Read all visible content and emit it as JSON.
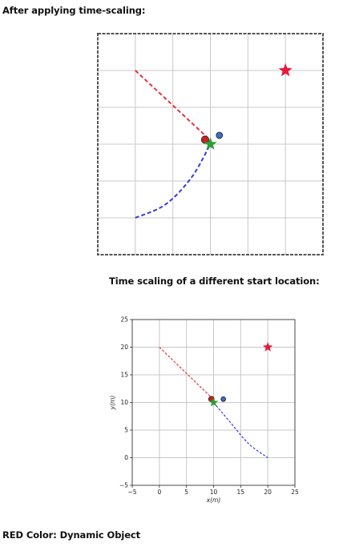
{
  "headings": {
    "after_scaling": "After applying time-scaling:",
    "different_start": "Time scaling of a different start location:",
    "legend_note": "RED Color: Dynamic Object"
  },
  "colors": {
    "red_path": "#e8333a",
    "blue_path": "#3a3ae0",
    "goal_star": "#e8173c",
    "agent_star": "#2e9e3a",
    "dynamic_dot": "#d01f1f",
    "agent_dot": "#3a6fd0",
    "grid": "#c8c8c8"
  },
  "chart_data": [
    {
      "type": "scatter",
      "title": "",
      "xlabel": "",
      "ylabel": "",
      "xlim": [
        -5,
        25
      ],
      "ylim": [
        -5,
        25
      ],
      "grid": true,
      "ticks_visible": false,
      "red_path": [
        [
          0,
          20
        ],
        [
          9.5,
          11
        ]
      ],
      "blue_path": [
        [
          0,
          0
        ],
        [
          4,
          1.8
        ],
        [
          7.5,
          5.5
        ],
        [
          10,
          10
        ]
      ],
      "goal_star": [
        20,
        20
      ],
      "agent_star": [
        10,
        10
      ],
      "dynamic_dot": [
        9.3,
        10.6
      ],
      "agent_dot": [
        11.2,
        11.2
      ]
    },
    {
      "type": "scatter",
      "title": "",
      "xlabel": "x(m)",
      "ylabel": "y(m)",
      "xlim": [
        -5,
        25
      ],
      "ylim": [
        -5,
        25
      ],
      "grid": true,
      "ticks_visible": true,
      "xticks": [
        "−5",
        "0",
        "5",
        "10",
        "15",
        "20",
        "25"
      ],
      "yticks": [
        "−5",
        "0",
        "5",
        "10",
        "15",
        "20",
        "25"
      ],
      "red_path": [
        [
          0,
          20
        ],
        [
          9.5,
          11
        ]
      ],
      "blue_path": [
        [
          10,
          10
        ],
        [
          13,
          6.5
        ],
        [
          16.5,
          2.5
        ],
        [
          20,
          0
        ]
      ],
      "goal_star": [
        20,
        20
      ],
      "agent_star": [
        10,
        10
      ],
      "dynamic_dot": [
        9.6,
        10.6
      ],
      "agent_dot": [
        11.8,
        10.6
      ]
    }
  ]
}
